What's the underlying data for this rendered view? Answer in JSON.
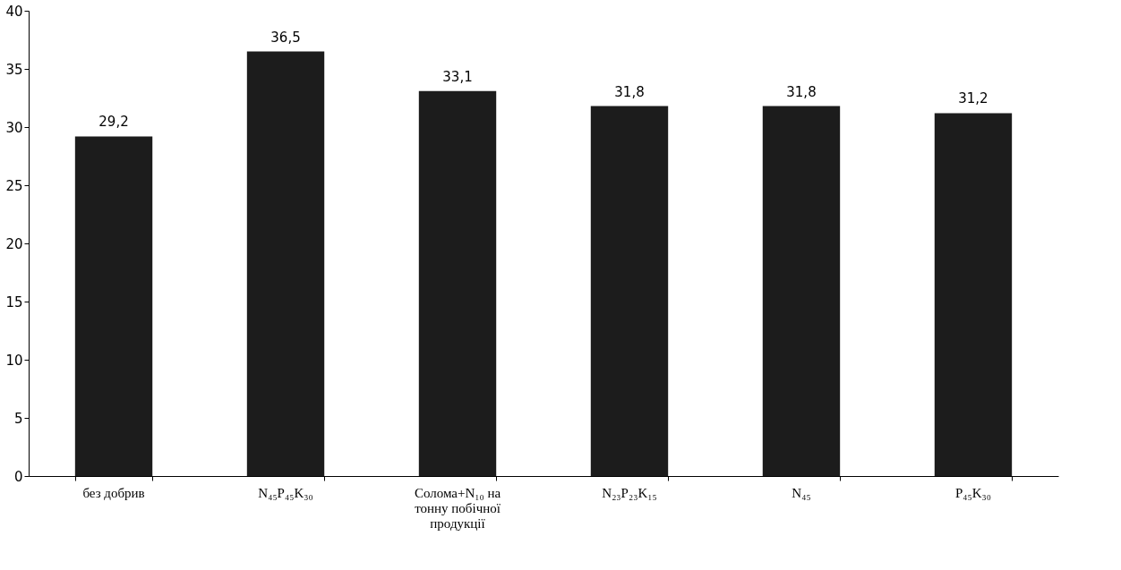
{
  "chart_data": {
    "type": "bar",
    "categories": [
      "без добрив",
      "N₄₅P₄₅K₃₀",
      "Солома+N₁₀  на тонну побічної продукції",
      "N₂₃P₂₃K₁₅",
      "N₄₅",
      "P₄₅K₃₀"
    ],
    "values": [
      29.2,
      36.5,
      33.1,
      31.8,
      31.8,
      31.2
    ],
    "value_labels": [
      "29,2",
      "36,5",
      "33,1",
      "31,8",
      "31,8",
      "31,2"
    ],
    "color": "#1c1c1c",
    "ylim": [
      0,
      40
    ],
    "yticks": [
      0,
      5,
      10,
      15,
      20,
      25,
      30,
      35,
      40
    ],
    "grid": false
  }
}
